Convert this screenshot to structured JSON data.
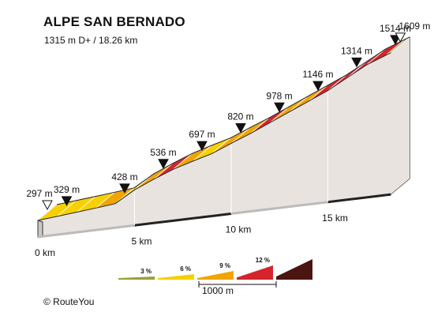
{
  "chart_data": {
    "type": "area",
    "title": "ALPE SAN BERNADO",
    "subtitle": "1315 m D+ / 18.26 km",
    "unit_distance": "km",
    "unit_elevation": "m",
    "x_ticks": [
      "0 km",
      "5 km",
      "10 km",
      "15 km"
    ],
    "x_tick_values": [
      0,
      5,
      10,
      15
    ],
    "distance_km": [
      0,
      1,
      2,
      3,
      4,
      5,
      6,
      7,
      8,
      9,
      10,
      11,
      12,
      13,
      14,
      15,
      16,
      17,
      18,
      18.26
    ],
    "elevation_m": [
      297,
      329,
      361,
      394,
      428,
      536,
      620,
      697,
      760,
      820,
      900,
      978,
      1062,
      1146,
      1230,
      1314,
      1414,
      1514,
      1590,
      1609
    ],
    "segment_grade_class": [
      "3-6",
      "3-6",
      "3-6",
      "6-9",
      "3-6",
      "6-9",
      "9-12",
      "6-9",
      "3-6",
      "6-9",
      "6-9",
      "9-12",
      "6-9",
      "6-9",
      "9-12",
      "9-12",
      "9-12",
      "9-12",
      "0-3"
    ],
    "marker_labels": [
      {
        "km": 0,
        "label": "297 m",
        "kind": "start"
      },
      {
        "km": 1,
        "label": "329 m",
        "kind": "marker"
      },
      {
        "km": 4,
        "label": "428 m",
        "kind": "marker"
      },
      {
        "km": 6,
        "label": "536 m",
        "kind": "marker"
      },
      {
        "km": 8,
        "label": "697 m",
        "kind": "marker"
      },
      {
        "km": 10,
        "label": "820 m",
        "kind": "marker"
      },
      {
        "km": 12,
        "label": "978 m",
        "kind": "marker"
      },
      {
        "km": 14,
        "label": "1146 m",
        "kind": "marker"
      },
      {
        "km": 16,
        "label": "1314 m",
        "kind": "marker"
      },
      {
        "km": 18,
        "label": "1514 m",
        "kind": "marker"
      },
      {
        "km": 20,
        "label": "1609 m",
        "kind": "end"
      }
    ],
    "legend": {
      "items": [
        {
          "label": "3 %",
          "color": "#9aa03a"
        },
        {
          "label": "6 %",
          "color": "#f5d000"
        },
        {
          "label": "9 %",
          "color": "#f0a500"
        },
        {
          "label": "12 %",
          "color": "#d4252b"
        },
        {
          "label": "",
          "color": "#4a1410"
        }
      ],
      "scale_label": "1000 m"
    },
    "colors": {
      "0-3": "#9aa03a",
      "3-6": "#f7d000",
      "6-9": "#f0a500",
      "9-12": "#d4252b",
      "wall": "#e9e3df",
      "base": "#c8c8c8"
    }
  },
  "credit": "© RouteYou"
}
